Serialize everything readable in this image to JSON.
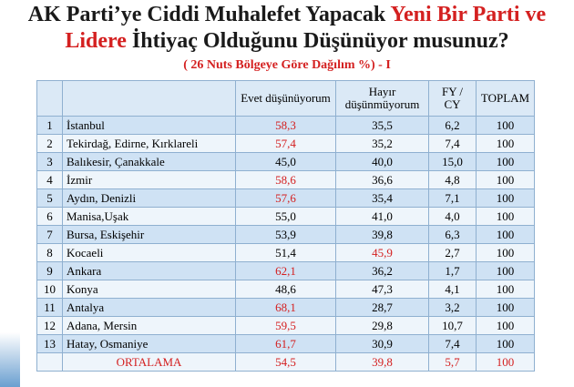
{
  "header": {
    "title_lines": [
      [
        {
          "text": "AK Parti’ye Ciddi Muhalefet Yapacak ",
          "color": "#1a1a1a"
        },
        {
          "text": "Yeni Bir Parti ve",
          "color": "#d42020"
        }
      ],
      [
        {
          "text": "Lidere",
          "color": "#d42020"
        },
        {
          "text": " İhtiyaç Olduğunu Düşünüyor musunuz?",
          "color": "#1a1a1a"
        }
      ]
    ],
    "subtitle": "( 26 Nuts Bölgeye Göre Dağılım %) - I"
  },
  "table": {
    "columns": [
      "Evet düşünüyorum",
      "Hayır düşünmüyorum",
      "FY / CY",
      "TOPLAM"
    ],
    "rows": [
      {
        "no": "1",
        "name": "İstanbul",
        "cells": [
          "58,3",
          "35,5",
          "6,2",
          "100"
        ],
        "red": [
          0
        ]
      },
      {
        "no": "2",
        "name": "Tekirdağ, Edirne, Kırklareli",
        "cells": [
          "57,4",
          "35,2",
          "7,4",
          "100"
        ],
        "red": [
          0
        ]
      },
      {
        "no": "3",
        "name": "Balıkesir, Çanakkale",
        "cells": [
          "45,0",
          "40,0",
          "15,0",
          "100"
        ],
        "red": []
      },
      {
        "no": "4",
        "name": "İzmir",
        "cells": [
          "58,6",
          "36,6",
          "4,8",
          "100"
        ],
        "red": [
          0
        ]
      },
      {
        "no": "5",
        "name": "Aydın, Denizli",
        "cells": [
          "57,6",
          "35,4",
          "7,1",
          "100"
        ],
        "red": [
          0
        ]
      },
      {
        "no": "6",
        "name": "Manisa,Uşak",
        "cells": [
          "55,0",
          "41,0",
          "4,0",
          "100"
        ],
        "red": []
      },
      {
        "no": "7",
        "name": "Bursa, Eskişehir",
        "cells": [
          "53,9",
          "39,8",
          "6,3",
          "100"
        ],
        "red": []
      },
      {
        "no": "8",
        "name": "Kocaeli",
        "cells": [
          "51,4",
          "45,9",
          "2,7",
          "100"
        ],
        "red": [
          1
        ]
      },
      {
        "no": "9",
        "name": "Ankara",
        "cells": [
          "62,1",
          "36,2",
          "1,7",
          "100"
        ],
        "red": [
          0
        ]
      },
      {
        "no": "10",
        "name": "Konya",
        "cells": [
          "48,6",
          "47,3",
          "4,1",
          "100"
        ],
        "red": []
      },
      {
        "no": "11",
        "name": "Antalya",
        "cells": [
          "68,1",
          "28,7",
          "3,2",
          "100"
        ],
        "red": [
          0
        ]
      },
      {
        "no": "12",
        "name": "Adana, Mersin",
        "cells": [
          "59,5",
          "29,8",
          "10,7",
          "100"
        ],
        "red": [
          0
        ]
      },
      {
        "no": "13",
        "name": "Hatay, Osmaniye",
        "cells": [
          "61,7",
          "30,9",
          "7,4",
          "100"
        ],
        "red": [
          0
        ]
      }
    ],
    "average": {
      "name": "ORTALAMA",
      "cells": [
        "54,5",
        "39,8",
        "5,7",
        "100"
      ]
    }
  }
}
